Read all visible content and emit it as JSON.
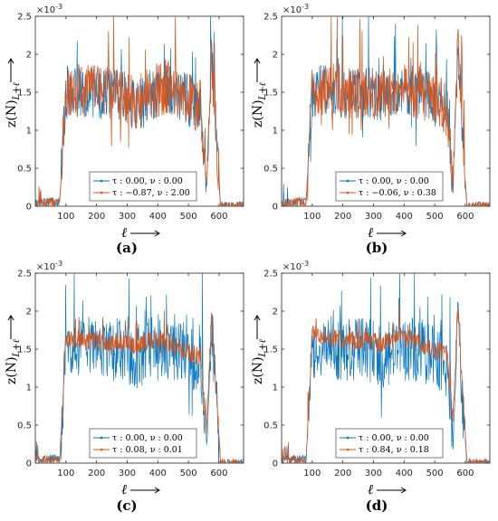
{
  "chart_data": [
    {
      "panel_label": "(a)",
      "type": "line",
      "xlim": [
        0,
        680
      ],
      "ylim": [
        0,
        0.0025
      ],
      "xticks": [
        "100",
        "200",
        "300",
        "400",
        "500",
        "600"
      ],
      "yticks": [
        "0",
        "0.5",
        "1",
        "1.5",
        "2",
        "2.5"
      ],
      "y_multiplier": "×10",
      "y_multiplier_exp": "-3",
      "ylabel": "z(N)",
      "ylabel_sub": "L+ℓ",
      "xlabel": "ℓ",
      "legend_position": "lower-center",
      "series": [
        {
          "name": "τ : 0.00,  ν : 0.00",
          "color": "#0072BD",
          "profile": [
            4e-05,
            6e-05,
            0.00152,
            0.0015,
            0.00148,
            0.00145,
            0.00132,
            0.00148,
            0.00155,
            0.00146,
            0.00128,
            0.00028,
            0.00197,
            0.0
          ]
        },
        {
          "name": "τ : −0.87,  ν : 2.00",
          "color": "#D95319",
          "profile": [
            4e-05,
            6e-05,
            0.00155,
            0.00152,
            0.0015,
            0.00148,
            0.00135,
            0.0015,
            0.00157,
            0.00148,
            0.0013,
            0.00028,
            0.002,
            0.0
          ]
        }
      ]
    },
    {
      "panel_label": "(b)",
      "type": "line",
      "xlim": [
        0,
        680
      ],
      "ylim": [
        0,
        0.0025
      ],
      "xticks": [
        "100",
        "200",
        "300",
        "400",
        "500",
        "600"
      ],
      "yticks": [
        "0",
        "0.5",
        "1",
        "1.5",
        "2",
        "2.5"
      ],
      "y_multiplier": "×10",
      "y_multiplier_exp": "-3",
      "ylabel": "z(N)",
      "ylabel_sub": "L+ℓ",
      "xlabel": "ℓ",
      "legend_position": "lower-center",
      "series": [
        {
          "name": "τ : 0.00,  ν : 0.00",
          "color": "#0072BD",
          "profile": [
            4e-05,
            6e-05,
            0.0015,
            0.00152,
            0.00148,
            0.0015,
            0.0014,
            0.00152,
            0.0015,
            0.00145,
            0.00125,
            0.0003,
            0.0021,
            0.0
          ]
        },
        {
          "name": "τ : −0.06,  ν : 0.38",
          "color": "#D95319",
          "profile": [
            4e-05,
            6e-05,
            0.00152,
            0.00154,
            0.0015,
            0.00152,
            0.00142,
            0.00154,
            0.00152,
            0.00147,
            0.00127,
            0.0003,
            0.00212,
            0.0
          ]
        }
      ]
    },
    {
      "panel_label": "(c)",
      "type": "line",
      "xlim": [
        0,
        680
      ],
      "ylim": [
        0,
        0.0025
      ],
      "xticks": [
        "100",
        "200",
        "300",
        "400",
        "500",
        "600"
      ],
      "yticks": [
        "0",
        "0.5",
        "1",
        "1.5",
        "2",
        "2.5"
      ],
      "y_multiplier": "×10",
      "y_multiplier_exp": "-3",
      "ylabel": "z(N)",
      "ylabel_sub": "L+ℓ",
      "xlabel": "ℓ",
      "legend_position": "lower-center",
      "series": [
        {
          "name": "τ : 0.00,  ν : 0.00",
          "color": "#0072BD",
          "profile": [
            4e-05,
            6e-05,
            0.0015,
            0.00152,
            0.00148,
            0.0015,
            0.0014,
            0.00152,
            0.0015,
            0.00145,
            0.00125,
            0.0003,
            0.00185,
            0.0
          ]
        },
        {
          "name": "τ : 0.08,  ν : 0.01",
          "color": "#D95319",
          "profile": [
            4e-05,
            4e-05,
            0.00165,
            0.00162,
            0.00158,
            0.0016,
            0.00155,
            0.00162,
            0.0016,
            0.0015,
            0.0014,
            0.0004,
            0.002,
            0.0
          ]
        }
      ]
    },
    {
      "panel_label": "(d)",
      "type": "line",
      "xlim": [
        0,
        680
      ],
      "ylim": [
        0,
        0.0025
      ],
      "xticks": [
        "100",
        "200",
        "300",
        "400",
        "500",
        "600"
      ],
      "yticks": [
        "0",
        "0.5",
        "1",
        "1.5",
        "2",
        "2.5"
      ],
      "y_multiplier": "×10",
      "y_multiplier_exp": "-3",
      "ylabel": "z(N)",
      "ylabel_sub": "L+ℓ",
      "xlabel": "ℓ",
      "legend_position": "lower-center",
      "series": [
        {
          "name": "τ : 0.00,  ν : 0.00",
          "color": "#0072BD",
          "profile": [
            4e-05,
            6e-05,
            0.0015,
            0.00152,
            0.00148,
            0.0015,
            0.0014,
            0.00152,
            0.0015,
            0.00145,
            0.00125,
            0.0003,
            0.0019,
            0.0
          ]
        },
        {
          "name": "τ : 0.84,  ν : 0.18",
          "color": "#D95319",
          "profile": [
            4e-05,
            4e-05,
            0.0017,
            0.00165,
            0.0016,
            0.00162,
            0.00158,
            0.00165,
            0.00162,
            0.00152,
            0.00142,
            0.0006,
            0.00205,
            0.0
          ]
        }
      ]
    }
  ]
}
